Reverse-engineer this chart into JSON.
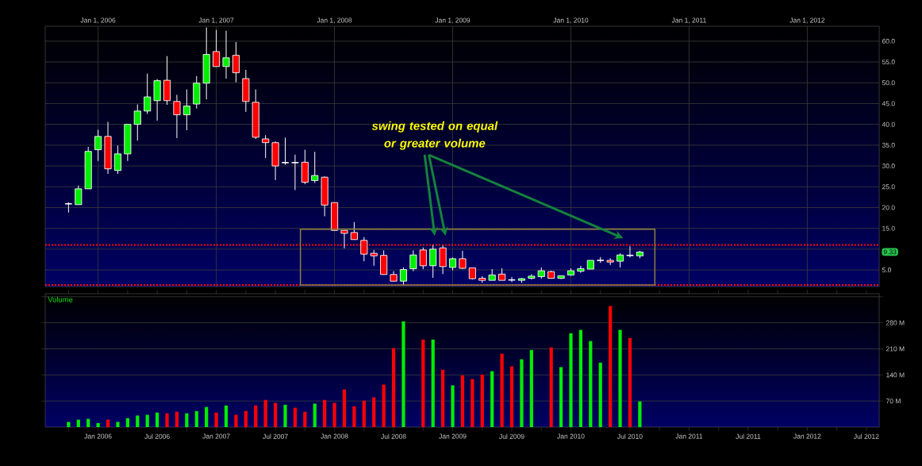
{
  "chart_data": [
    {
      "type": "candlestick",
      "x": [
        "2005-10",
        "2005-11",
        "2005-12",
        "2006-01",
        "2006-02",
        "2006-03",
        "2006-04",
        "2006-05",
        "2006-06",
        "2006-07",
        "2006-08",
        "2006-09",
        "2006-10",
        "2006-11",
        "2006-12",
        "2007-01",
        "2007-02",
        "2007-03",
        "2007-04",
        "2007-05",
        "2007-06",
        "2007-07",
        "2007-08",
        "2007-09",
        "2007-10",
        "2007-11",
        "2007-12",
        "2008-01",
        "2008-02",
        "2008-03",
        "2008-04",
        "2008-05",
        "2008-06",
        "2008-07",
        "2008-08",
        "2008-09",
        "2008-10",
        "2008-11",
        "2008-12",
        "2009-01",
        "2009-02",
        "2009-03",
        "2009-04",
        "2009-05",
        "2009-06",
        "2009-07",
        "2009-08",
        "2009-09",
        "2009-10",
        "2009-11",
        "2009-12",
        "2010-01",
        "2010-02",
        "2010-03",
        "2010-04",
        "2010-05",
        "2010-06",
        "2010-07",
        "2010-08"
      ],
      "ohlc": [
        [
          20.9,
          21.3,
          18.8,
          20.9
        ],
        [
          20.7,
          25.3,
          20.7,
          24.5
        ],
        [
          24.5,
          34.6,
          24.5,
          33.5
        ],
        [
          33.9,
          38.7,
          31.2,
          37.1
        ],
        [
          37.1,
          40.6,
          28.1,
          29.3
        ],
        [
          28.9,
          34.9,
          28.1,
          32.9
        ],
        [
          32.9,
          40.0,
          31.2,
          40.0
        ],
        [
          40.0,
          44.8,
          36.1,
          43.2
        ],
        [
          43.2,
          52.2,
          42.5,
          46.6
        ],
        [
          45.7,
          50.9,
          40.9,
          50.5
        ],
        [
          50.6,
          56.4,
          44.7,
          45.7
        ],
        [
          45.5,
          47.1,
          36.7,
          42.3
        ],
        [
          42.3,
          48.4,
          38.6,
          44.4
        ],
        [
          44.9,
          51.6,
          43.8,
          49.9
        ],
        [
          49.9,
          63.3,
          46.0,
          56.8
        ],
        [
          57.5,
          62.7,
          53.9,
          53.9
        ],
        [
          53.9,
          62.5,
          51.0,
          56.0
        ],
        [
          56.6,
          59.8,
          50.1,
          52.4
        ],
        [
          51.0,
          53.1,
          43.0,
          45.5
        ],
        [
          45.3,
          48.4,
          36.5,
          36.9
        ],
        [
          36.5,
          37.4,
          31.9,
          35.6
        ],
        [
          35.6,
          35.9,
          26.6,
          30.0
        ],
        [
          30.8,
          36.8,
          30.3,
          30.8
        ],
        [
          30.8,
          32.7,
          24.2,
          30.8
        ],
        [
          30.9,
          33.9,
          25.6,
          26.1
        ],
        [
          26.5,
          33.4,
          25.9,
          27.7
        ],
        [
          27.3,
          27.5,
          17.9,
          20.6
        ],
        [
          21.2,
          21.2,
          14.5,
          14.5
        ],
        [
          14.5,
          14.5,
          10.2,
          13.8
        ],
        [
          14.0,
          16.5,
          12.3,
          12.3
        ],
        [
          12.1,
          12.9,
          7.1,
          8.8
        ],
        [
          9.0,
          9.8,
          6.0,
          8.4
        ],
        [
          8.5,
          9.7,
          3.9,
          3.9
        ],
        [
          3.9,
          4.7,
          2.3,
          2.3
        ],
        [
          2.3,
          5.6,
          1.4,
          5.1
        ],
        [
          5.3,
          9.7,
          4.7,
          8.6
        ],
        [
          9.8,
          10.4,
          5.2,
          6.0
        ],
        [
          6.0,
          11.0,
          3.1,
          10.0
        ],
        [
          10.3,
          10.9,
          4.0,
          5.8
        ],
        [
          5.6,
          8.0,
          4.9,
          7.7
        ],
        [
          7.7,
          9.6,
          5.2,
          5.4
        ],
        [
          5.5,
          5.5,
          2.7,
          2.9
        ],
        [
          3.0,
          3.5,
          1.9,
          2.5
        ],
        [
          2.5,
          5.2,
          2.5,
          3.8
        ],
        [
          4.0,
          5.4,
          2.5,
          2.5
        ],
        [
          2.6,
          3.3,
          2.1,
          2.6
        ],
        [
          2.5,
          3.1,
          1.9,
          2.9
        ],
        [
          3.0,
          4.0,
          2.7,
          3.5
        ],
        [
          3.4,
          5.6,
          2.9,
          4.8
        ],
        [
          4.6,
          4.8,
          2.9,
          3.0
        ],
        [
          3.0,
          3.6,
          2.8,
          3.6
        ],
        [
          3.8,
          5.4,
          3.6,
          4.8
        ],
        [
          4.7,
          6.0,
          4.3,
          5.3
        ],
        [
          5.2,
          7.3,
          5.2,
          7.3
        ],
        [
          7.3,
          8.1,
          6.7,
          7.3
        ],
        [
          7.3,
          7.8,
          6.2,
          6.9
        ],
        [
          7.1,
          9.0,
          5.6,
          8.6
        ],
        [
          8.5,
          10.7,
          8.0,
          8.5
        ],
        [
          8.4,
          9.6,
          7.8,
          9.3
        ]
      ],
      "colors": [
        "#ffffff",
        "#00ee00",
        "#00ee00",
        "#00ee00",
        "#ff0000",
        "#00ee00",
        "#00ee00",
        "#00ee00",
        "#00ee00",
        "#00ee00",
        "#ff0000",
        "#ff0000",
        "#00ee00",
        "#00ee00",
        "#00ee00",
        "#ff0000",
        "#00ee00",
        "#ff0000",
        "#ff0000",
        "#ff0000",
        "#ff0000",
        "#ff0000",
        "#ffffff",
        "#ffffff",
        "#ff0000",
        "#00ee00",
        "#ff0000",
        "#ff0000",
        "#ff0000",
        "#ff0000",
        "#ff0000",
        "#ff0000",
        "#ff0000",
        "#ff0000",
        "#00ee00",
        "#00ee00",
        "#ff0000",
        "#00ee00",
        "#ff0000",
        "#00ee00",
        "#ff0000",
        "#ff0000",
        "#ff0000",
        "#00ee00",
        "#ff0000",
        "#ffffff",
        "#00ee00",
        "#00ee00",
        "#00ee00",
        "#ff0000",
        "#00ee00",
        "#00ee00",
        "#00ee00",
        "#00ee00",
        "#ffffff",
        "#ff0000",
        "#00ee00",
        "#ffffff",
        "#00ee00"
      ],
      "xlim": [
        "2005-07-20",
        "2012-08-10"
      ],
      "xticks": [
        {
          "value": "2006-01",
          "label": "Jan 1, 2006"
        },
        {
          "value": "2007-01",
          "label": "Jan 1, 2007"
        },
        {
          "value": "2008-01",
          "label": "Jan 1, 2008"
        },
        {
          "value": "2009-01",
          "label": "Jan 1, 2009"
        },
        {
          "value": "2010-01",
          "label": "Jan 1, 2010"
        },
        {
          "value": "2011-01",
          "label": "Jan 1, 2011"
        },
        {
          "value": "2012-01",
          "label": "Jan 1, 2012"
        }
      ],
      "ylim": [
        1.0,
        63.6
      ],
      "yticks": [
        {
          "value": 5,
          "label": "5.0"
        },
        {
          "value": 10,
          "label": null
        },
        {
          "value": 15,
          "label": "15.0"
        },
        {
          "value": 20,
          "label": "20.0"
        },
        {
          "value": 25,
          "label": "25.0"
        },
        {
          "value": 30,
          "label": "30.0"
        },
        {
          "value": 35,
          "label": "35.0"
        },
        {
          "value": 40,
          "label": "40.0"
        },
        {
          "value": 45,
          "label": "45.0"
        },
        {
          "value": 50,
          "label": "50.0"
        },
        {
          "value": 55,
          "label": "55.0"
        },
        {
          "value": 60,
          "label": "60.0"
        }
      ],
      "grid": true,
      "ref_lines": [
        {
          "axis": "y",
          "value": 11.0,
          "color": "#ff0000",
          "line_style": "dotted"
        },
        {
          "axis": "y",
          "value": 1.4,
          "color": "#ff0000",
          "line_style": "dotted"
        }
      ],
      "annotations": [
        "swing tested on equal or greater volume",
        "9.33"
      ]
    },
    {
      "type": "bar",
      "ylabel": "Volume",
      "x": [
        "2005-10",
        "2005-11",
        "2005-12",
        "2006-01",
        "2006-02",
        "2006-03",
        "2006-04",
        "2006-05",
        "2006-06",
        "2006-07",
        "2006-08",
        "2006-09",
        "2006-10",
        "2006-11",
        "2006-12",
        "2007-01",
        "2007-02",
        "2007-03",
        "2007-04",
        "2007-05",
        "2007-06",
        "2007-07",
        "2007-08",
        "2007-09",
        "2007-10",
        "2007-11",
        "2007-12",
        "2008-01",
        "2008-02",
        "2008-03",
        "2008-04",
        "2008-05",
        "2008-06",
        "2008-07",
        "2008-08",
        "2008-09",
        "2008-10",
        "2008-11",
        "2008-12",
        "2009-01",
        "2009-02",
        "2009-03",
        "2009-04",
        "2009-05",
        "2009-06",
        "2009-07",
        "2009-08",
        "2009-09",
        "2009-10",
        "2009-11",
        "2009-12",
        "2010-01",
        "2010-02",
        "2010-03",
        "2010-04",
        "2010-05",
        "2010-06",
        "2010-07",
        "2010-08"
      ],
      "values": [
        14,
        20,
        22,
        11,
        20,
        14,
        24,
        31,
        33,
        39,
        37,
        41,
        37,
        43,
        54,
        39,
        58,
        33,
        43,
        58,
        73,
        65,
        60,
        52,
        41,
        63,
        73,
        65,
        101,
        56,
        71,
        80,
        114,
        212,
        284,
        null,
        235,
        235,
        154,
        112,
        139,
        129,
        141,
        150,
        197,
        163,
        182,
        207,
        null,
        214,
        161,
        252,
        261,
        231,
        173,
        325,
        261,
        239,
        69
      ],
      "colors": [
        "#00ee00",
        "#00ee00",
        "#00ee00",
        "#00ee00",
        "#ff0000",
        "#00ee00",
        "#00ee00",
        "#00ee00",
        "#00ee00",
        "#00ee00",
        "#ff0000",
        "#ff0000",
        "#00ee00",
        "#00ee00",
        "#00ee00",
        "#ff0000",
        "#00ee00",
        "#ff0000",
        "#ff0000",
        "#ff0000",
        "#ff0000",
        "#ff0000",
        "#00ee00",
        "#ff0000",
        "#ff0000",
        "#00ee00",
        "#ff0000",
        "#ff0000",
        "#ff0000",
        "#ff0000",
        "#ff0000",
        "#ff0000",
        "#ff0000",
        "#ff0000",
        "#00ee00",
        "#00ee00",
        "#ff0000",
        "#00ee00",
        "#ff0000",
        "#00ee00",
        "#ff0000",
        "#ff0000",
        "#ff0000",
        "#00ee00",
        "#ff0000",
        "#ff0000",
        "#00ee00",
        "#00ee00",
        "#00ee00",
        "#ff0000",
        "#00ee00",
        "#00ee00",
        "#00ee00",
        "#00ee00",
        "#00ee00",
        "#ff0000",
        "#00ee00",
        "#ff0000",
        "#00ee00"
      ],
      "xlim": [
        "2005-07-20",
        "2012-08-10"
      ],
      "xticks": [
        {
          "value": "2005-10",
          "label": null
        },
        {
          "value": "2006-01",
          "label": "Jan 2006"
        },
        {
          "value": "2006-04",
          "label": null
        },
        {
          "value": "2006-07",
          "label": "Jul 2006"
        },
        {
          "value": "2006-10",
          "label": null
        },
        {
          "value": "2007-01",
          "label": "Jan 2007"
        },
        {
          "value": "2007-04",
          "label": null
        },
        {
          "value": "2007-07",
          "label": "Jul 2007"
        },
        {
          "value": "2007-10",
          "label": null
        },
        {
          "value": "2008-01",
          "label": "Jan 2008"
        },
        {
          "value": "2008-04",
          "label": null
        },
        {
          "value": "2008-07",
          "label": "Jul 2008"
        },
        {
          "value": "2008-10",
          "label": null
        },
        {
          "value": "2009-01",
          "label": "Jan 2009"
        },
        {
          "value": "2009-04",
          "label": null
        },
        {
          "value": "2009-07",
          "label": "Jul 2009"
        },
        {
          "value": "2009-10",
          "label": null
        },
        {
          "value": "2010-01",
          "label": "Jan 2010"
        },
        {
          "value": "2010-04",
          "label": null
        },
        {
          "value": "2010-07",
          "label": "Jul 2010"
        },
        {
          "value": "2010-10",
          "label": null
        },
        {
          "value": "2011-01",
          "label": "Jan 2011"
        },
        {
          "value": "2011-04",
          "label": null
        },
        {
          "value": "2011-07",
          "label": "Jul 2011"
        },
        {
          "value": "2011-10",
          "label": null
        },
        {
          "value": "2012-01",
          "label": "Jan 2012"
        },
        {
          "value": "2012-04",
          "label": null
        },
        {
          "value": "2012-07",
          "label": "Jul 2012"
        }
      ],
      "ylim": [
        0,
        358
      ],
      "yticks": [
        {
          "value": 70,
          "label": "70 M"
        },
        {
          "value": 140,
          "label": "140 M"
        },
        {
          "value": 210,
          "label": "210 M"
        },
        {
          "value": 280,
          "label": "280 M"
        },
        {
          "value": 350,
          "label": null
        }
      ],
      "grid": "y"
    }
  ]
}
